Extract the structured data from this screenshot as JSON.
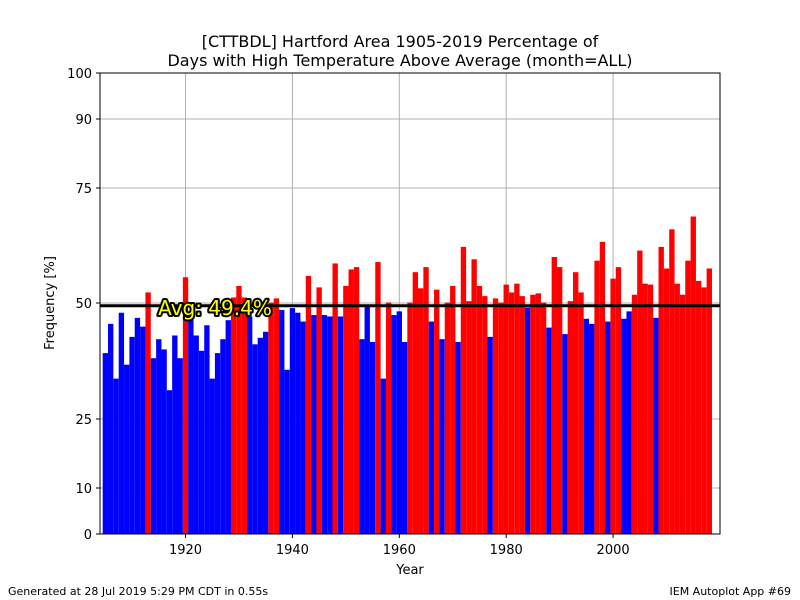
{
  "chart_data": {
    "type": "bar",
    "title_line1": "[CTTBDL] Hartford Area 1905-2019 Percentage of",
    "title_line2": "Days with High Temperature Above Average (month=ALL)",
    "xlabel": "Year",
    "ylabel": "Frequency [%]",
    "xlim": [
      1904,
      2020
    ],
    "ylim": [
      0,
      100
    ],
    "xticks": [
      1920,
      1940,
      1960,
      1980,
      2000
    ],
    "yticks": [
      0,
      10,
      25,
      50,
      75,
      90,
      100
    ],
    "grid": true,
    "average": 49.4,
    "average_label": "Avg: 49.4%",
    "below_color": "#0000ff",
    "above_color": "#ff0000",
    "avg_label_color": "#ffff00",
    "start_year": 1905,
    "values": [
      39.2,
      45.5,
      33.7,
      47.9,
      36.7,
      42.7,
      46.8,
      44.9,
      52.3,
      38.1,
      42.2,
      40.0,
      31.2,
      43.0,
      38.1,
      55.6,
      47.9,
      43.0,
      39.7,
      45.2,
      33.7,
      39.2,
      42.2,
      46.3,
      51.2,
      53.7,
      51.2,
      47.1,
      41.1,
      42.5,
      43.8,
      50.1,
      51.0,
      48.5,
      35.6,
      48.9,
      47.9,
      46.0,
      55.9,
      47.4,
      53.4,
      47.4,
      47.1,
      58.6,
      47.1,
      53.7,
      57.3,
      57.8,
      42.2,
      49.3,
      41.6,
      58.9,
      33.7,
      50.1,
      47.4,
      48.2,
      41.6,
      50.1,
      56.7,
      53.2,
      57.8,
      46.0,
      52.9,
      42.2,
      50.1,
      53.7,
      41.6,
      62.2,
      50.4,
      59.5,
      53.7,
      51.5,
      42.7,
      51.0,
      50.1,
      54.0,
      52.3,
      54.2,
      51.5,
      49.0,
      51.8,
      52.1,
      50.1,
      44.7,
      60.0,
      57.8,
      43.3,
      50.4,
      56.7,
      52.3,
      46.6,
      45.5,
      59.2,
      63.3,
      46.0,
      55.3,
      57.8,
      46.6,
      48.2,
      51.8,
      61.4,
      54.2,
      54.0,
      46.8,
      62.2,
      57.5,
      66.0,
      54.2,
      51.8,
      59.2,
      68.8,
      54.8,
      53.4,
      57.5
    ]
  },
  "footer": {
    "left": "Generated at 28 Jul 2019 5:29 PM CDT in 0.55s",
    "right": "IEM Autoplot App #69"
  }
}
